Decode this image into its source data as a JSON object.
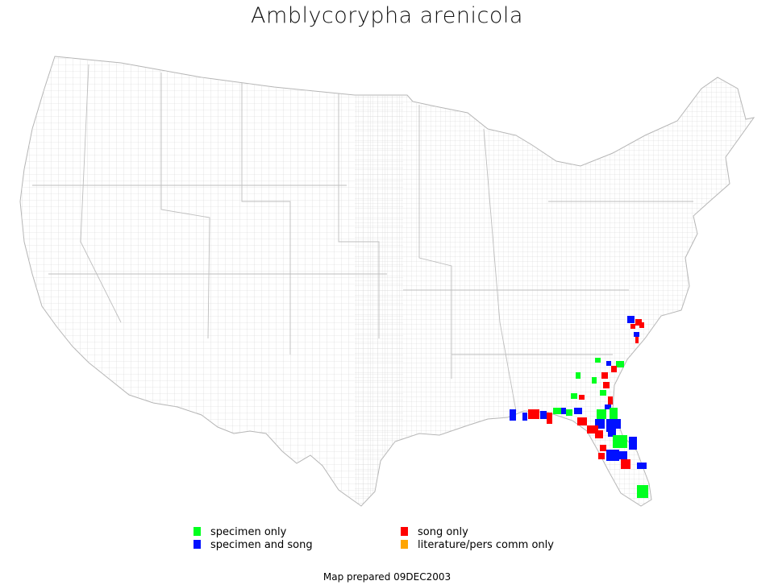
{
  "title": "Amblycorypha arenicola",
  "colors": {
    "specimen_only": "#00ff1f",
    "specimen_and_song": "#0010ff",
    "song_only": "#ff0000",
    "literature": "#ffa500",
    "county_lines": "#c8c8c8"
  },
  "legend": {
    "specimen_only": "specimen only",
    "specimen_and_song": "specimen and song",
    "song_only": "song only",
    "literature": "literature/pers comm only"
  },
  "footer": "Map prepared 09DEC2003"
}
